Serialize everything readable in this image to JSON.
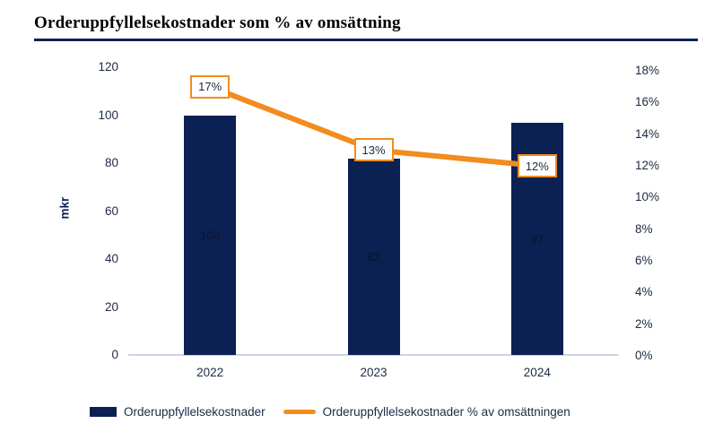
{
  "title": "Orderuppfyllelsekostnader som % av omsättning",
  "colors": {
    "navy": "#0B2153",
    "orange": "#F28C1E",
    "axis_line": "#CBD6E4",
    "tick_text": "#1B2A44",
    "bar_value_text": "#081428",
    "title_text": "#000000",
    "point_box_bg": "#FFFFFF"
  },
  "chart_data": {
    "type": "combo-bar-line",
    "title": "Orderuppfyllelsekostnader som % av omsättning",
    "categories": [
      "2022",
      "2023",
      "2024"
    ],
    "series": [
      {
        "name": "Orderuppfyllelsekostnader",
        "type": "bar",
        "axis": "left",
        "values": [
          100,
          82,
          97
        ],
        "data_labels": [
          "100",
          "82",
          "97"
        ],
        "color": "#0B2153"
      },
      {
        "name": "Orderuppfyllelsekostnader % av omsättningen",
        "type": "line",
        "axis": "right",
        "values": [
          17,
          13,
          12
        ],
        "data_labels": [
          "17%",
          "13%",
          "12%"
        ],
        "color": "#F28C1E"
      }
    ],
    "left_axis": {
      "label": "mkr",
      "min": 0,
      "max": 120,
      "step": 20,
      "ticks": [
        "120",
        "100",
        "80",
        "60",
        "40",
        "20",
        "0"
      ]
    },
    "right_axis": {
      "min": 0,
      "max": 18,
      "step": 2,
      "ticks": [
        "18%",
        "16%",
        "14%",
        "12%",
        "10%",
        "8%",
        "6%",
        "4%",
        "2%",
        "0%"
      ]
    },
    "grid": false,
    "legend_position": "bottom"
  }
}
